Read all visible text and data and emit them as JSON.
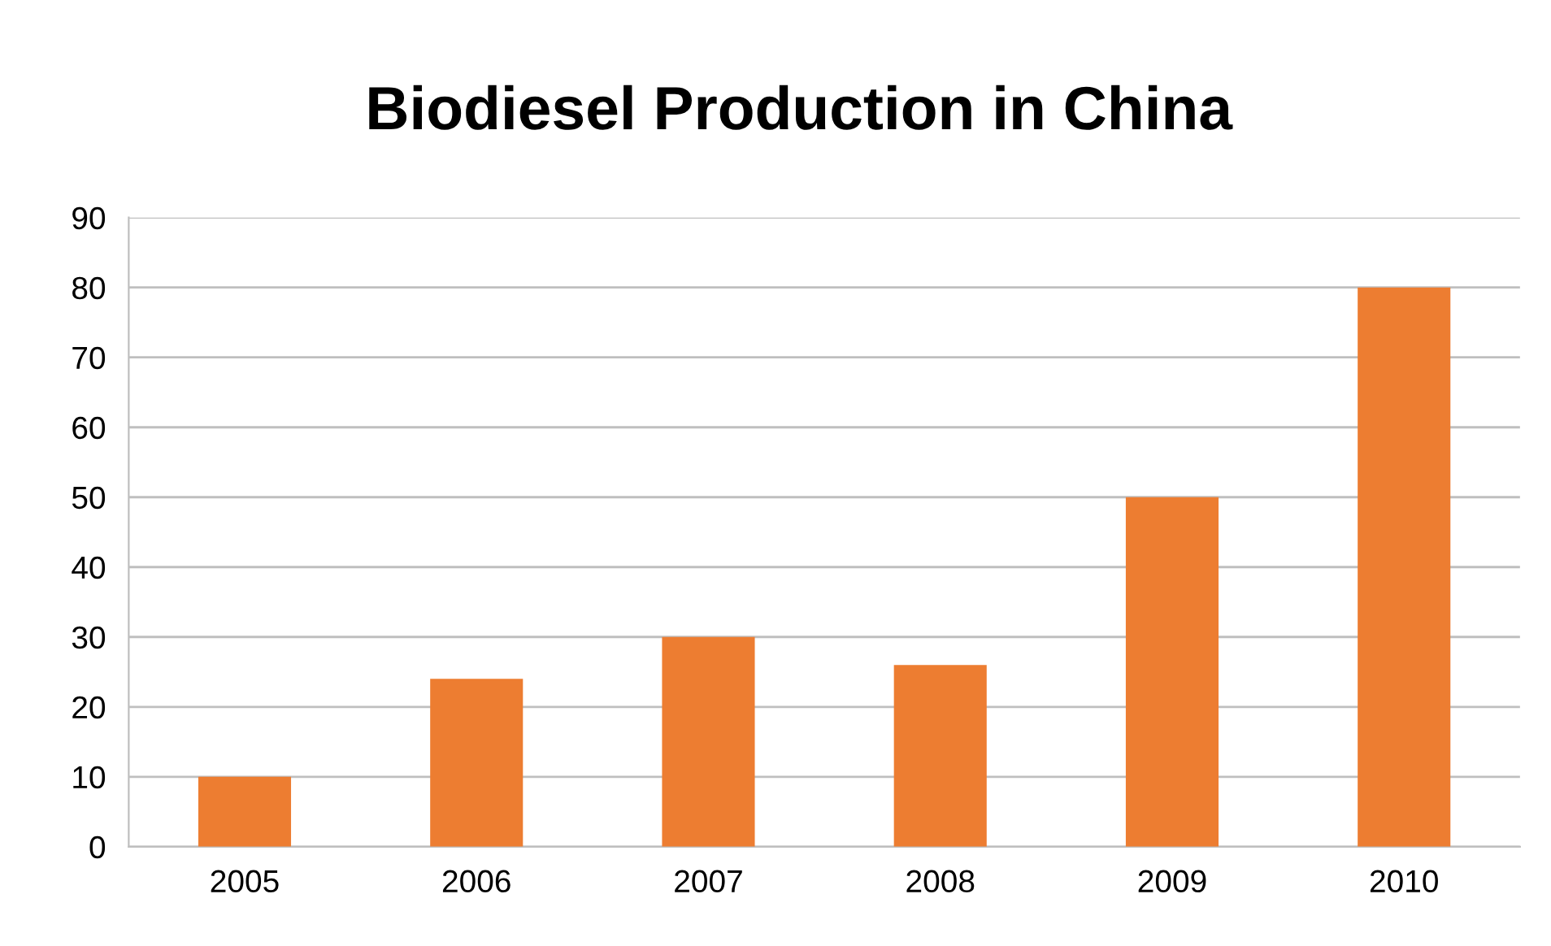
{
  "chart_data": {
    "type": "bar",
    "title": "Biodiesel Production in China",
    "categories": [
      "2005",
      "2006",
      "2007",
      "2008",
      "2009",
      "2010"
    ],
    "values": [
      10,
      24,
      30,
      26,
      50,
      80
    ],
    "color": "#ed7d31",
    "ylim": [
      0,
      90
    ],
    "yticks": [
      0,
      10,
      20,
      30,
      40,
      50,
      60,
      70,
      80,
      90
    ],
    "grid": "y",
    "legend": false
  }
}
